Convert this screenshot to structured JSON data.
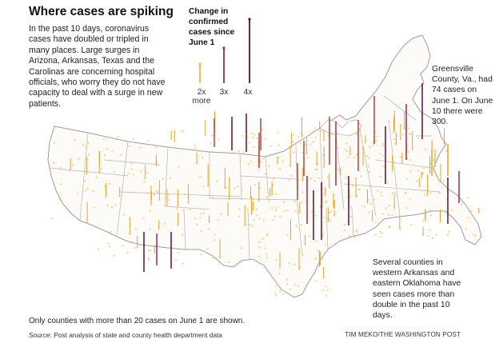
{
  "title": "Where cases are spiking",
  "intro": "In the past 10 days, coronavirus cases have doubled or tripled in many places. Large surges in Arizona, Arkansas, Texas and the Carolinas are concerning hospital officials, who worry they do not have capacity to deal with a surge in new patients.",
  "legend": {
    "title": "Change in confirmed cases since June 1",
    "items": [
      {
        "label": "2x\nmore",
        "label_line1": "2x",
        "label_line2": "more",
        "multiplier": 2,
        "color": "#f5b73c"
      },
      {
        "label": "3x",
        "label_line1": "3x",
        "label_line2": "",
        "multiplier": 3,
        "color": "#9b2d4f"
      },
      {
        "label": "4x",
        "label_line1": "4x",
        "label_line2": "",
        "multiplier": 4,
        "color": "#5a1235"
      }
    ]
  },
  "annotations": {
    "greensville": "Greensville County, Va., had 74 cases on June 1. On June 10 there were 300.",
    "arkansas": "Several counties in western Arkansas and eastern Oklahoma have seen cases more than double in the past 10 days."
  },
  "footnote": "Only counties with more than 20 cases on June 1 are shown.",
  "source": "Source: Post analysis of state and county health department data",
  "credit": "TIM MEKO/THE WASHINGTON POST",
  "colors": {
    "low": "#f5c96a",
    "mid": "#e8a22a",
    "high": "#b0463d",
    "max": "#5a1235",
    "state_border": "#b5b5b5"
  }
}
